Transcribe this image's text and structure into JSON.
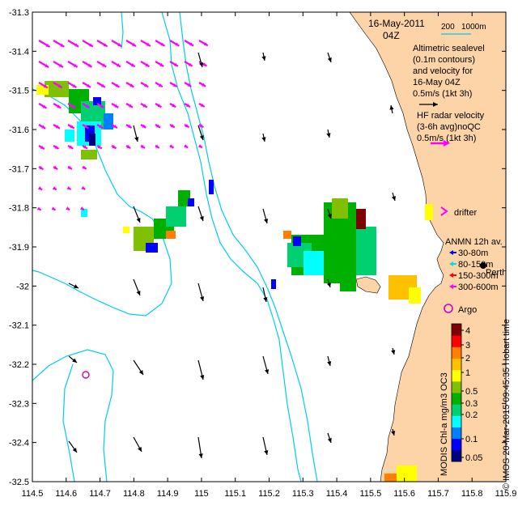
{
  "header": {
    "date": "16-May-2011",
    "time": "04Z",
    "scale_200": "200",
    "scale_1000": "1000m"
  },
  "legend": {
    "altimetric_lines": [
      "Altimetric sealevel",
      "(0.1m contours)",
      "and velocity for",
      "16-May 04Z"
    ],
    "altimetric_scale": "0.5m/s (1kt 3h)",
    "hf_lines": [
      "HF radar velocity",
      "(3-6h avg)noQC"
    ],
    "hf_scale": "0.5m/s (1kt 3h)",
    "drifter": "drifter",
    "anmn_title": "ANMN 12h av.",
    "anmn_items": [
      {
        "label": "30-80m",
        "color": "#0000ff"
      },
      {
        "label": "80-150m",
        "color": "#00e0e0"
      },
      {
        "label": "150-300m",
        "color": "#ff0000"
      },
      {
        "label": "300-600m",
        "color": "#ff00ff"
      }
    ],
    "perth": "Perth",
    "argo": "Argo"
  },
  "colorbar": {
    "ticks": [
      "4",
      "3",
      "2",
      "1",
      "0.5",
      "0.3",
      "0.2",
      "0.1",
      "0.05"
    ],
    "label": "MODIS Chl-a mg/m3 OC3",
    "colors": [
      "#00007f",
      "#0000ff",
      "#007fff",
      "#00ffff",
      "#00d070",
      "#00b000",
      "#7fc000",
      "#ffff00",
      "#ffc000",
      "#ff7f00",
      "#ff0000",
      "#7f0000"
    ]
  },
  "credit": "© IMOS 20-Mar-2015 09:45:35 Hobart time",
  "axes": {
    "x_ticks": [
      "114.5",
      "114.6",
      "114.7",
      "114.8",
      "114.9",
      "115",
      "115.1",
      "115.2",
      "115.3",
      "115.4",
      "115.5",
      "115.6",
      "115.7",
      "115.8",
      "115.9"
    ],
    "y_ticks": [
      "-31.3",
      "-31.4",
      "-31.5",
      "-31.6",
      "-31.7",
      "-31.8",
      "-31.9",
      "-32",
      "-32.1",
      "-32.2",
      "-32.3",
      "-32.4",
      "-32.5"
    ],
    "x_range": [
      114.5,
      115.9
    ],
    "y_range": [
      -32.5,
      -31.3
    ]
  },
  "colors": {
    "land": "#fdd3a8",
    "contour": "#00ccee",
    "hf_arrow": "#ff00ff",
    "alt_arrow": "#000000"
  }
}
